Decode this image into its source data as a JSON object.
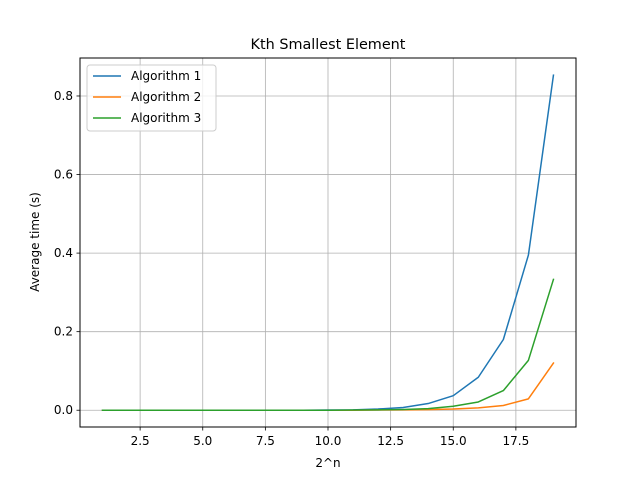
{
  "chart_data": {
    "type": "line",
    "title": "Kth Smallest Element",
    "xlabel": "2^n",
    "ylabel": "Average time (s)",
    "xlim": [
      0.1,
      19.9
    ],
    "ylim": [
      -0.0427,
      0.8967
    ],
    "xticks": [
      2.5,
      5.0,
      7.5,
      10.0,
      12.5,
      15.0,
      17.5
    ],
    "xtick_labels": [
      "2.5",
      "5.0",
      "7.5",
      "10.0",
      "12.5",
      "15.0",
      "17.5"
    ],
    "yticks": [
      0.0,
      0.2,
      0.4,
      0.6,
      0.8
    ],
    "ytick_labels": [
      "0.0",
      "0.2",
      "0.4",
      "0.6",
      "0.8"
    ],
    "grid": true,
    "legend_position": "upper-left",
    "x": [
      1,
      2,
      3,
      4,
      5,
      6,
      7,
      8,
      9,
      10,
      11,
      12,
      13,
      14,
      15,
      16,
      17,
      18,
      19
    ],
    "series": [
      {
        "name": "Algorithm 1",
        "color": "#1f77b4",
        "values": [
          0,
          0,
          0,
          0,
          0,
          0,
          0,
          0,
          0,
          0.0005,
          0.001,
          0.003,
          0.007,
          0.017,
          0.037,
          0.084,
          0.18,
          0.395,
          0.853
        ]
      },
      {
        "name": "Algorithm 2",
        "color": "#ff7f0e",
        "values": [
          0,
          0,
          0,
          0,
          0,
          0,
          0,
          0,
          0,
          0,
          0,
          0.0005,
          0.0008,
          0.0015,
          0.003,
          0.006,
          0.012,
          0.029,
          0.12
        ]
      },
      {
        "name": "Algorithm 3",
        "color": "#2ca02c",
        "values": [
          0,
          0,
          0,
          0,
          0,
          0,
          0,
          0,
          0,
          0,
          0.0005,
          0.001,
          0.002,
          0.004,
          0.01,
          0.021,
          0.05,
          0.127,
          0.333
        ]
      }
    ]
  }
}
